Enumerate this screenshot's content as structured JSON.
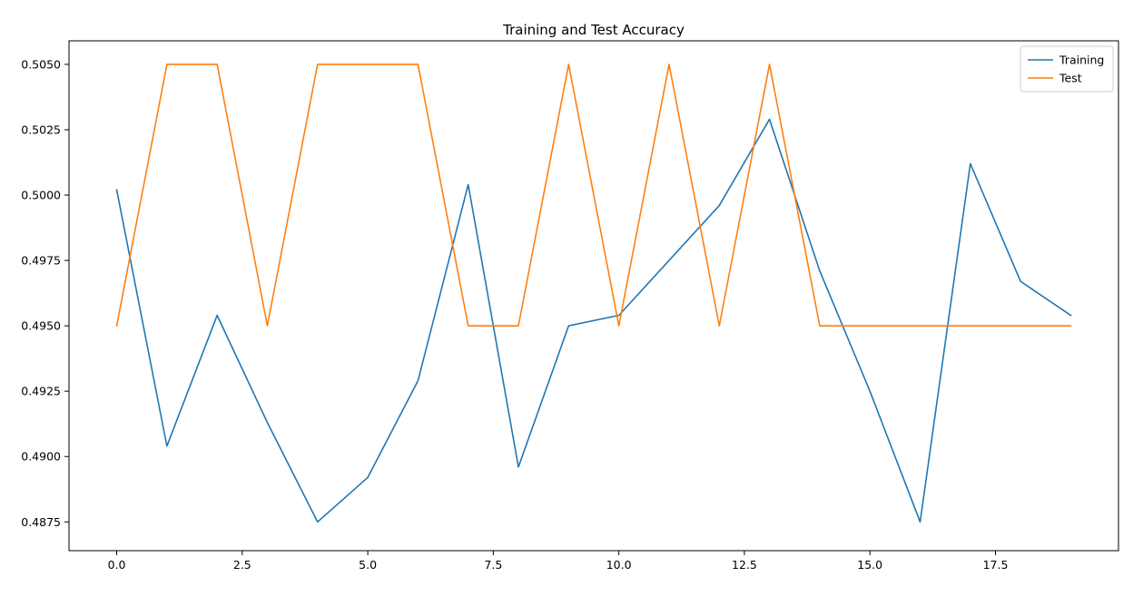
{
  "chart_data": {
    "type": "line",
    "title": "Training and Test Accuracy",
    "xlabel": "",
    "ylabel": "",
    "x": [
      0,
      1,
      2,
      3,
      4,
      5,
      6,
      7,
      8,
      9,
      10,
      11,
      12,
      13,
      14,
      15,
      16,
      17,
      18,
      19
    ],
    "xlim": [
      -0.95,
      19.95
    ],
    "ylim": [
      0.4864,
      0.5059
    ],
    "x_ticks": [
      0.0,
      2.5,
      5.0,
      7.5,
      10.0,
      12.5,
      15.0,
      17.5
    ],
    "x_tick_labels": [
      "0.0",
      "2.5",
      "5.0",
      "7.5",
      "10.0",
      "12.5",
      "15.0",
      "17.5"
    ],
    "y_ticks": [
      0.4875,
      0.49,
      0.4925,
      0.495,
      0.4975,
      0.5,
      0.5025,
      0.505
    ],
    "y_tick_labels": [
      "0.4875",
      "0.4900",
      "0.4925",
      "0.4950",
      "0.4975",
      "0.5000",
      "0.5025",
      "0.5050"
    ],
    "grid": false,
    "legend_position": "top-right",
    "series": [
      {
        "name": "Training",
        "color": "#1f77b4",
        "values": [
          0.5002,
          0.4904,
          0.4954,
          0.4913,
          0.4875,
          0.4892,
          0.4929,
          0.5004,
          0.4896,
          0.495,
          0.4954,
          0.4975,
          0.4996,
          0.5029,
          0.4971,
          0.4925,
          0.4875,
          0.5012,
          0.4967,
          0.4954
        ]
      },
      {
        "name": "Test",
        "color": "#ff7f0e",
        "values": [
          0.495,
          0.505,
          0.505,
          0.495,
          0.505,
          0.505,
          0.505,
          0.495,
          0.495,
          0.505,
          0.495,
          0.505,
          0.495,
          0.505,
          0.495,
          0.495,
          0.495,
          0.495,
          0.495,
          0.495
        ]
      }
    ]
  }
}
